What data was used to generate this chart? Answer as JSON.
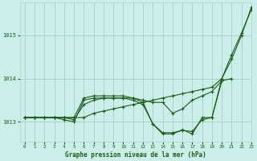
{
  "xlabel": "Graphe pression niveau de la mer (hPa)",
  "bg_color": "#cceee8",
  "grid_color": "#aad4cc",
  "line_color": "#1a5c1a",
  "ylim": [
    1012.55,
    1015.75
  ],
  "xlim": [
    -0.5,
    23
  ],
  "yticks": [
    1013,
    1014,
    1015
  ],
  "xticks": [
    0,
    1,
    2,
    3,
    4,
    5,
    6,
    7,
    8,
    9,
    10,
    11,
    12,
    13,
    14,
    15,
    16,
    17,
    18,
    19,
    20,
    21,
    22,
    23
  ],
  "series": [
    [
      1013.1,
      1013.1,
      1013.1,
      1013.1,
      1013.1,
      1013.05,
      1013.4,
      1013.5,
      1013.55,
      1013.55,
      1013.55,
      1013.55,
      1013.5,
      1013.45,
      1013.45,
      1013.2,
      1013.3,
      1013.5,
      1013.6,
      1013.7,
      1013.95,
      1014.0,
      null,
      null
    ],
    [
      1013.1,
      1013.1,
      1013.1,
      1013.1,
      1013.05,
      1013.0,
      1013.5,
      1013.55,
      1013.55,
      1013.55,
      1013.55,
      1013.5,
      1013.4,
      1012.95,
      1012.75,
      1012.75,
      1012.8,
      1012.78,
      1013.05,
      1013.1,
      1013.95,
      null,
      null,
      null
    ],
    [
      1013.1,
      1013.1,
      1013.1,
      1013.1,
      1013.1,
      1013.1,
      1013.55,
      1013.6,
      1013.6,
      1013.6,
      1013.6,
      1013.55,
      1013.45,
      1012.95,
      1012.72,
      1012.72,
      1012.82,
      1012.72,
      1013.1,
      1013.1,
      1014.0,
      1014.55,
      1015.05,
      1015.6
    ],
    [
      1013.1,
      1013.1,
      1013.1,
      1013.1,
      1013.1,
      1013.1,
      1013.1,
      1013.2,
      1013.25,
      1013.3,
      1013.35,
      1013.4,
      1013.45,
      1013.5,
      1013.55,
      1013.6,
      1013.65,
      1013.7,
      1013.75,
      1013.8,
      1014.0,
      1014.45,
      1015.0,
      1015.65
    ]
  ]
}
